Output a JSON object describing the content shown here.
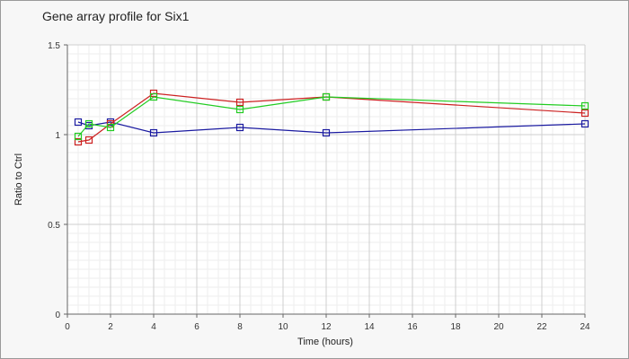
{
  "chart_data": {
    "type": "line",
    "title": "Gene array profile for Six1",
    "xlabel": "Time (hours)",
    "ylabel": "Ratio to Ctrl",
    "xlim": [
      0,
      24
    ],
    "ylim": [
      0,
      1.5
    ],
    "x_ticks": [
      "0",
      "2",
      "4",
      "6",
      "8",
      "10",
      "12",
      "14",
      "16",
      "18",
      "20",
      "22",
      "24"
    ],
    "y_ticks": [
      "0",
      "0.5",
      "1",
      "1.5"
    ],
    "grid": true,
    "legend": "none",
    "series": [
      {
        "color": "#1a1aa0",
        "x": [
          0.5,
          1,
          2,
          4,
          8,
          12,
          24
        ],
        "y": [
          1.07,
          1.05,
          1.07,
          1.01,
          1.04,
          1.01,
          1.06
        ]
      },
      {
        "color": "#cc2020",
        "x": [
          0.5,
          1,
          2,
          4,
          8,
          12,
          24
        ],
        "y": [
          0.96,
          0.97,
          1.06,
          1.23,
          1.18,
          1.21,
          1.12
        ]
      },
      {
        "color": "#22cc22",
        "x": [
          0.5,
          1,
          2,
          4,
          8,
          12,
          24
        ],
        "y": [
          0.99,
          1.06,
          1.04,
          1.21,
          1.14,
          1.21,
          1.16
        ]
      }
    ]
  }
}
